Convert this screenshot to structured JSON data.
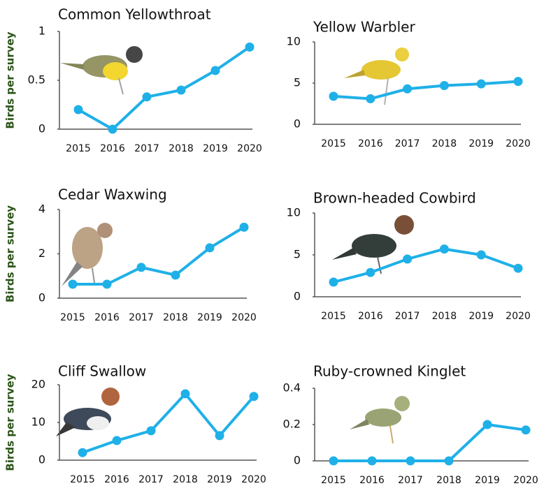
{
  "chart_data": [
    {
      "type": "line",
      "title": "Common Yellowthroat",
      "ylabel": "Birds per survey",
      "categories": [
        "2015",
        "2016",
        "2017",
        "2018",
        "2019",
        "2020"
      ],
      "values": [
        0.2,
        0,
        0.33,
        0.4,
        0.6,
        0.84
      ],
      "color": "#1fb0e8",
      "ylim": [
        0,
        1
      ],
      "yticks": [
        0,
        0.5,
        1
      ]
    },
    {
      "type": "line",
      "title": "Yellow Warbler",
      "categories": [
        "2015",
        "2016",
        "2017",
        "2018",
        "2019",
        "2020"
      ],
      "values": [
        3.4,
        3.1,
        4.3,
        4.7,
        4.9,
        5.2
      ],
      "color": "#1fb0e8",
      "ylim": [
        0,
        10
      ],
      "yticks": [
        0,
        5,
        10
      ]
    },
    {
      "type": "line",
      "title": "Cedar Waxwing",
      "ylabel": "Birds per survey",
      "categories": [
        "2015",
        "2016",
        "2017",
        "2018",
        "2019",
        "2020"
      ],
      "values": [
        0.63,
        0.63,
        1.39,
        1.04,
        2.27,
        3.2
      ],
      "color": "#1fb0e8",
      "ylim": [
        0,
        4
      ],
      "yticks": [
        0,
        2,
        4
      ]
    },
    {
      "type": "line",
      "title": "Brown-headed Cowbird",
      "categories": [
        "2015",
        "2016",
        "2017",
        "2018",
        "2019",
        "2020"
      ],
      "values": [
        1.75,
        2.9,
        4.5,
        5.7,
        5.0,
        3.4
      ],
      "color": "#1fb0e8",
      "ylim": [
        0,
        10
      ],
      "yticks": [
        0,
        5,
        10
      ]
    },
    {
      "type": "line",
      "title": "Cliff Swallow",
      "ylabel": "Birds per survey",
      "categories": [
        "2015",
        "2016",
        "2017",
        "2018",
        "2019",
        "2020"
      ],
      "values": [
        2,
        5.2,
        7.8,
        17.6,
        6.5,
        16.9
      ],
      "color": "#1fb0e8",
      "ylim": [
        0,
        20
      ],
      "yticks": [
        0,
        10,
        20
      ]
    },
    {
      "type": "line",
      "title": "Ruby-crowned Kinglet",
      "categories": [
        "2015",
        "2016",
        "2017",
        "2018",
        "2019",
        "2020"
      ],
      "values": [
        0,
        0,
        0,
        0,
        0.2,
        0.17
      ],
      "color": "#1fb0e8",
      "ylim": [
        0,
        0.4
      ],
      "yticks": [
        0,
        0.2,
        0.4
      ]
    }
  ]
}
